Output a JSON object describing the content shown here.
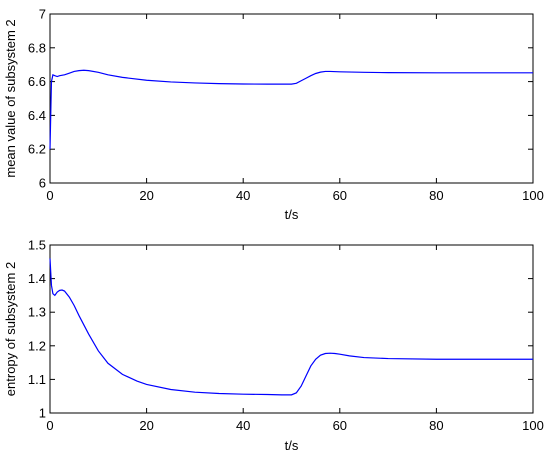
{
  "chart_data": [
    {
      "type": "line",
      "title": "",
      "xlabel": "t/s",
      "ylabel": "mean value of subsystem 2",
      "xlim": [
        0,
        100
      ],
      "ylim": [
        6,
        7
      ],
      "x_ticks": [
        0,
        20,
        40,
        60,
        80,
        100
      ],
      "y_ticks": [
        6,
        6.2,
        6.4,
        6.6,
        6.8,
        7
      ],
      "x_tick_labels": [
        "0",
        "20",
        "40",
        "60",
        "80",
        "100"
      ],
      "y_tick_labels": [
        "6",
        "6.2",
        "6.4",
        "6.6",
        "6.8",
        "7"
      ],
      "grid": false,
      "series": [
        {
          "color": "#0000ff",
          "x": [
            0,
            0.3,
            0.6,
            1,
            1.5,
            2,
            3,
            4,
            5,
            6,
            7,
            8,
            10,
            12,
            15,
            20,
            25,
            30,
            35,
            40,
            45,
            48,
            50,
            51,
            52,
            53,
            54,
            55,
            56,
            57,
            58,
            60,
            65,
            70,
            80,
            90,
            100
          ],
          "y": [
            6.2,
            6.6,
            6.64,
            6.635,
            6.63,
            6.635,
            6.64,
            6.65,
            6.66,
            6.665,
            6.667,
            6.665,
            6.655,
            6.64,
            6.625,
            6.608,
            6.598,
            6.592,
            6.588,
            6.586,
            6.585,
            6.585,
            6.585,
            6.59,
            6.605,
            6.62,
            6.635,
            6.648,
            6.656,
            6.66,
            6.66,
            6.658,
            6.655,
            6.653,
            6.652,
            6.652,
            6.652
          ]
        }
      ]
    },
    {
      "type": "line",
      "title": "",
      "xlabel": "t/s",
      "ylabel": "entropy of subsystem 2",
      "xlim": [
        0,
        100
      ],
      "ylim": [
        1,
        1.5
      ],
      "x_ticks": [
        0,
        20,
        40,
        60,
        80,
        100
      ],
      "y_ticks": [
        1,
        1.1,
        1.2,
        1.3,
        1.4,
        1.5
      ],
      "x_tick_labels": [
        "0",
        "20",
        "40",
        "60",
        "80",
        "100"
      ],
      "y_tick_labels": [
        "1",
        "1.1",
        "1.2",
        "1.3",
        "1.4",
        "1.5"
      ],
      "grid": false,
      "series": [
        {
          "color": "#0000ff",
          "x": [
            0,
            0.3,
            0.6,
            1,
            1.5,
            2,
            2.5,
            3,
            4,
            5,
            6,
            8,
            10,
            12,
            15,
            18,
            20,
            25,
            30,
            35,
            40,
            45,
            48,
            50,
            51,
            52,
            53,
            54,
            55,
            56,
            57,
            58,
            59,
            60,
            62,
            65,
            70,
            80,
            90,
            100
          ],
          "y": [
            1.46,
            1.38,
            1.355,
            1.35,
            1.36,
            1.365,
            1.366,
            1.363,
            1.345,
            1.32,
            1.29,
            1.235,
            1.185,
            1.148,
            1.115,
            1.095,
            1.085,
            1.07,
            1.062,
            1.058,
            1.056,
            1.055,
            1.054,
            1.054,
            1.06,
            1.08,
            1.11,
            1.14,
            1.16,
            1.172,
            1.177,
            1.178,
            1.177,
            1.175,
            1.17,
            1.165,
            1.162,
            1.16,
            1.16,
            1.16
          ]
        }
      ]
    }
  ]
}
